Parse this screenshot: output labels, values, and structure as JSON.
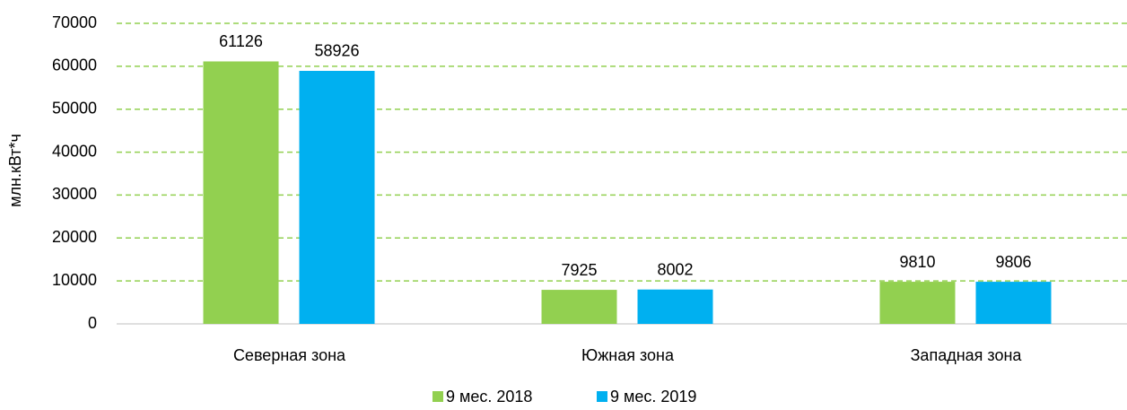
{
  "chart_data": {
    "type": "bar",
    "y_label": "млн.кВт*ч",
    "categories": [
      "Северная зона",
      "Южная зона",
      "Западная зона"
    ],
    "series": [
      {
        "name": "9 мес. 2018",
        "color": "#92d050",
        "values": [
          61126,
          7925,
          9810
        ]
      },
      {
        "name": "9 мес. 2019",
        "color": "#00b0f0",
        "values": [
          58926,
          8002,
          9806
        ]
      }
    ],
    "ylim": [
      0,
      70000
    ],
    "yticks": [
      0,
      10000,
      20000,
      30000,
      40000,
      50000,
      60000,
      70000
    ],
    "grid": true,
    "grid_color": "#92d050",
    "legend": "bottom",
    "data_labels": true
  }
}
